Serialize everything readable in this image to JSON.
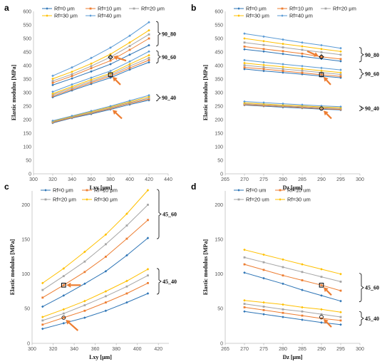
{
  "figure": {
    "colors": {
      "Rf0": "#2E75B6",
      "Rf10": "#ED7D31",
      "Rf20": "#A5A5A5",
      "Rf30": "#FFC000",
      "Rf40": "#5B9BD5",
      "arrow": "#ED7D31",
      "bracket": "#000000"
    }
  },
  "chart_data": [
    {
      "panel": "a",
      "type": "line",
      "xlabel": "Lxy [μm]",
      "ylabel": "Elastic modulus [MPa]",
      "xlim": [
        300,
        440
      ],
      "ylim": [
        0,
        600
      ],
      "xticks": [
        300,
        320,
        340,
        360,
        380,
        400,
        420,
        440
      ],
      "yticks": [
        0,
        50,
        100,
        150,
        200,
        250,
        300,
        350,
        400,
        450,
        500,
        550,
        600
      ],
      "legend": {
        "placement": "top-left",
        "columns": 3,
        "entries": [
          {
            "key": "Rf0",
            "label": "Rf=0 μm"
          },
          {
            "key": "Rf10",
            "label": "Rf=10 μm"
          },
          {
            "key": "Rf20",
            "label": "Rf=20 μm"
          },
          {
            "key": "Rf30",
            "label": "Rf=30 μm"
          },
          {
            "key": "Rf40",
            "label": "Rf=40 μm"
          }
        ]
      },
      "x": [
        320,
        340,
        360,
        380,
        400,
        420
      ],
      "groups": [
        {
          "label": "90_80",
          "series": [
            {
              "key": "Rf0",
              "values": [
                328,
                352,
                378,
                405,
                440,
                475
              ]
            },
            {
              "key": "Rf10",
              "values": [
                336,
                361,
                390,
                418,
                458,
                500
              ]
            },
            {
              "key": "Rf20",
              "values": [
                343,
                368,
                398,
                431,
                472,
                515
              ]
            },
            {
              "key": "Rf30",
              "values": [
                351,
                377,
                407,
                442,
                485,
                530
              ]
            },
            {
              "key": "Rf40",
              "values": [
                362,
                393,
                428,
                466,
                510,
                560
              ]
            }
          ]
        },
        {
          "label": "90_60",
          "series": [
            {
              "key": "Rf0",
              "values": [
                283,
                308,
                332,
                355,
                385,
                412
              ]
            },
            {
              "key": "Rf10",
              "values": [
                287,
                312,
                337,
                361,
                391,
                420
              ]
            },
            {
              "key": "Rf20",
              "values": [
                292,
                317,
                342,
                366,
                398,
                428
              ]
            },
            {
              "key": "Rf30",
              "values": [
                296,
                322,
                348,
                371,
                405,
                438
              ]
            },
            {
              "key": "Rf40",
              "values": [
                303,
                330,
                355,
                380,
                415,
                452
              ]
            }
          ]
        },
        {
          "label": "90_40",
          "series": [
            {
              "key": "Rf0",
              "values": [
                188,
                206,
                221,
                238,
                256,
                272
              ]
            },
            {
              "key": "Rf10",
              "values": [
                190,
                208,
                224,
                241,
                260,
                276
              ]
            },
            {
              "key": "Rf20",
              "values": [
                192,
                210,
                226,
                244,
                263,
                280
              ]
            },
            {
              "key": "Rf30",
              "values": [
                194,
                212,
                229,
                247,
                266,
                285
              ]
            },
            {
              "key": "Rf40",
              "values": [
                196,
                214,
                232,
                250,
                270,
                290
              ]
            }
          ]
        }
      ],
      "highlights": [
        {
          "x": 380,
          "y": 431,
          "shape": "diamond"
        },
        {
          "x": 380,
          "y": 366,
          "shape": "square"
        },
        {
          "x": 380,
          "y": 241,
          "shape": "none"
        }
      ]
    },
    {
      "panel": "b",
      "type": "line",
      "xlabel": "Dz [μm]",
      "ylabel": "Elastic modulus [MPa]",
      "xlim": [
        265,
        300
      ],
      "ylim": [
        0,
        600
      ],
      "xticks": [
        265,
        270,
        275,
        280,
        285,
        290,
        295,
        300
      ],
      "yticks": [
        0,
        50,
        100,
        150,
        200,
        250,
        300,
        350,
        400,
        450,
        500,
        550,
        600
      ],
      "legend": {
        "placement": "top-left",
        "columns": 3,
        "entries": [
          {
            "key": "Rf0",
            "label": "Rf=0 μm"
          },
          {
            "key": "Rf10",
            "label": "Rf=10 μm"
          },
          {
            "key": "Rf20",
            "label": "Rf=20 μm"
          },
          {
            "key": "Rf30",
            "label": "Rf=30 μm"
          },
          {
            "key": "Rf40",
            "label": "Rf=40 μm"
          }
        ]
      },
      "x": [
        270,
        275,
        280,
        285,
        290,
        295
      ],
      "groups": [
        {
          "label": "90_80",
          "series": [
            {
              "key": "Rf0",
              "values": [
                460,
                452,
                443,
                434,
                425,
                416
              ]
            },
            {
              "key": "Rf10",
              "values": [
                470,
                461,
                453,
                444,
                432,
                424
              ]
            },
            {
              "key": "Rf20",
              "values": [
                485,
                476,
                467,
                458,
                449,
                440
              ]
            },
            {
              "key": "Rf30",
              "values": [
                500,
                490,
                480,
                471,
                461,
                452
              ]
            },
            {
              "key": "Rf40",
              "values": [
                518,
                507,
                496,
                485,
                475,
                464
              ]
            }
          ]
        },
        {
          "label": "90_60",
          "series": [
            {
              "key": "Rf0",
              "values": [
                387,
                380,
                374,
                368,
                361,
                355
              ]
            },
            {
              "key": "Rf10",
              "values": [
                393,
                387,
                380,
                373,
                366,
                360
              ]
            },
            {
              "key": "Rf20",
              "values": [
                401,
                394,
                387,
                381,
                374,
                367
              ]
            },
            {
              "key": "Rf30",
              "values": [
                409,
                402,
                395,
                388,
                381,
                374
              ]
            },
            {
              "key": "Rf40",
              "values": [
                420,
                412,
                405,
                398,
                391,
                384
              ]
            }
          ]
        },
        {
          "label": "90_40",
          "series": [
            {
              "key": "Rf0",
              "values": [
                254,
                250,
                246,
                243,
                239,
                236
              ]
            },
            {
              "key": "Rf10",
              "values": [
                256,
                252,
                249,
                245,
                241,
                238
              ]
            },
            {
              "key": "Rf20",
              "values": [
                259,
                255,
                251,
                248,
                244,
                241
              ]
            },
            {
              "key": "Rf30",
              "values": [
                262,
                258,
                254,
                251,
                247,
                244
              ]
            },
            {
              "key": "Rf40",
              "values": [
                267,
                263,
                259,
                255,
                251,
                248
              ]
            }
          ]
        }
      ],
      "highlights": [
        {
          "x": 290,
          "y": 432,
          "shape": "diamond"
        },
        {
          "x": 290,
          "y": 366,
          "shape": "square"
        },
        {
          "x": 290,
          "y": 241,
          "shape": "circle"
        }
      ]
    },
    {
      "panel": "c",
      "type": "line",
      "xlabel": "Lxy [μm]",
      "ylabel": "Elastic modulus [MPa]",
      "xlim": [
        300,
        430
      ],
      "ylim": [
        0,
        220
      ],
      "xticks": [
        300,
        320,
        340,
        360,
        380,
        400,
        420
      ],
      "yticks": [
        0,
        50,
        100,
        150,
        200
      ],
      "legend": {
        "placement": "top-left",
        "columns": 2,
        "entries": [
          {
            "key": "Rf0",
            "label": "Rf=0 μm"
          },
          {
            "key": "Rf10",
            "label": "Rf=10 μm"
          },
          {
            "key": "Rf20",
            "label": "Rf=20 μm"
          },
          {
            "key": "Rf30",
            "label": "Rf=30 μm"
          }
        ]
      },
      "x": [
        310,
        330,
        350,
        370,
        390,
        410
      ],
      "groups": [
        {
          "label": "45_60",
          "series": [
            {
              "key": "Rf0",
              "values": [
                53,
                69,
                86,
                104,
                127,
                152
              ]
            },
            {
              "key": "Rf10",
              "values": [
                66,
                84,
                103,
                125,
                151,
                178
              ]
            },
            {
              "key": "Rf20",
              "values": [
                77,
                97,
                118,
                143,
                170,
                200
              ]
            },
            {
              "key": "Rf30",
              "values": [
                87,
                108,
                132,
                157,
                187,
                221
              ]
            }
          ]
        },
        {
          "label": "45_40",
          "series": [
            {
              "key": "Rf0",
              "values": [
                21,
                29,
                37,
                47,
                59,
                72
              ]
            },
            {
              "key": "Rf10",
              "values": [
                27,
                37,
                47,
                59,
                72,
                87
              ]
            },
            {
              "key": "Rf20",
              "values": [
                33,
                43,
                55,
                68,
                82,
                98
              ]
            },
            {
              "key": "Rf30",
              "values": [
                38,
                49,
                61,
                75,
                90,
                107
              ]
            }
          ]
        }
      ],
      "highlights": [
        {
          "x": 330,
          "y": 84,
          "shape": "square"
        },
        {
          "x": 330,
          "y": 37,
          "shape": "circle"
        }
      ]
    },
    {
      "panel": "d",
      "type": "line",
      "xlabel": "Dz [μm]",
      "ylabel": "Elastic modulus [MPa]",
      "xlim": [
        265,
        300
      ],
      "ylim": [
        0,
        220
      ],
      "xticks": [
        265,
        270,
        275,
        280,
        285,
        290,
        295,
        300
      ],
      "yticks": [
        0,
        50,
        100,
        150,
        200
      ],
      "legend": {
        "placement": "top-left",
        "columns": 2,
        "entries": [
          {
            "key": "Rf0",
            "label": "Rf=0 um"
          },
          {
            "key": "Rf10",
            "label": "Rf=10 um"
          },
          {
            "key": "Rf20",
            "label": "Rf=20 um"
          },
          {
            "key": "Rf30",
            "label": "Rf=30 um"
          }
        ]
      },
      "x": [
        270,
        275,
        280,
        285,
        290,
        295
      ],
      "groups": [
        {
          "label": "45_60",
          "series": [
            {
              "key": "Rf0",
              "values": [
                102,
                94,
                86,
                77,
                69,
                61
              ]
            },
            {
              "key": "Rf10",
              "values": [
                114,
                106,
                98,
                91,
                84,
                76
              ]
            },
            {
              "key": "Rf20",
              "values": [
                124,
                117,
                110,
                103,
                96,
                89
              ]
            },
            {
              "key": "Rf30",
              "values": [
                135,
                128,
                121,
                114,
                107,
                100
              ]
            }
          ]
        },
        {
          "label": "45_40",
          "series": [
            {
              "key": "Rf0",
              "values": [
                46,
                42,
                38,
                34,
                30,
                27
              ]
            },
            {
              "key": "Rf10",
              "values": [
                52,
                48,
                44,
                40,
                36,
                33
              ]
            },
            {
              "key": "Rf20",
              "values": [
                57,
                53,
                49,
                46,
                42,
                38
              ]
            },
            {
              "key": "Rf30",
              "values": [
                62,
                59,
                56,
                52,
                49,
                45
              ]
            }
          ]
        }
      ],
      "highlights": [
        {
          "x": 290,
          "y": 84,
          "shape": "square"
        },
        {
          "x": 290,
          "y": 38,
          "shape": "circle"
        }
      ]
    }
  ]
}
